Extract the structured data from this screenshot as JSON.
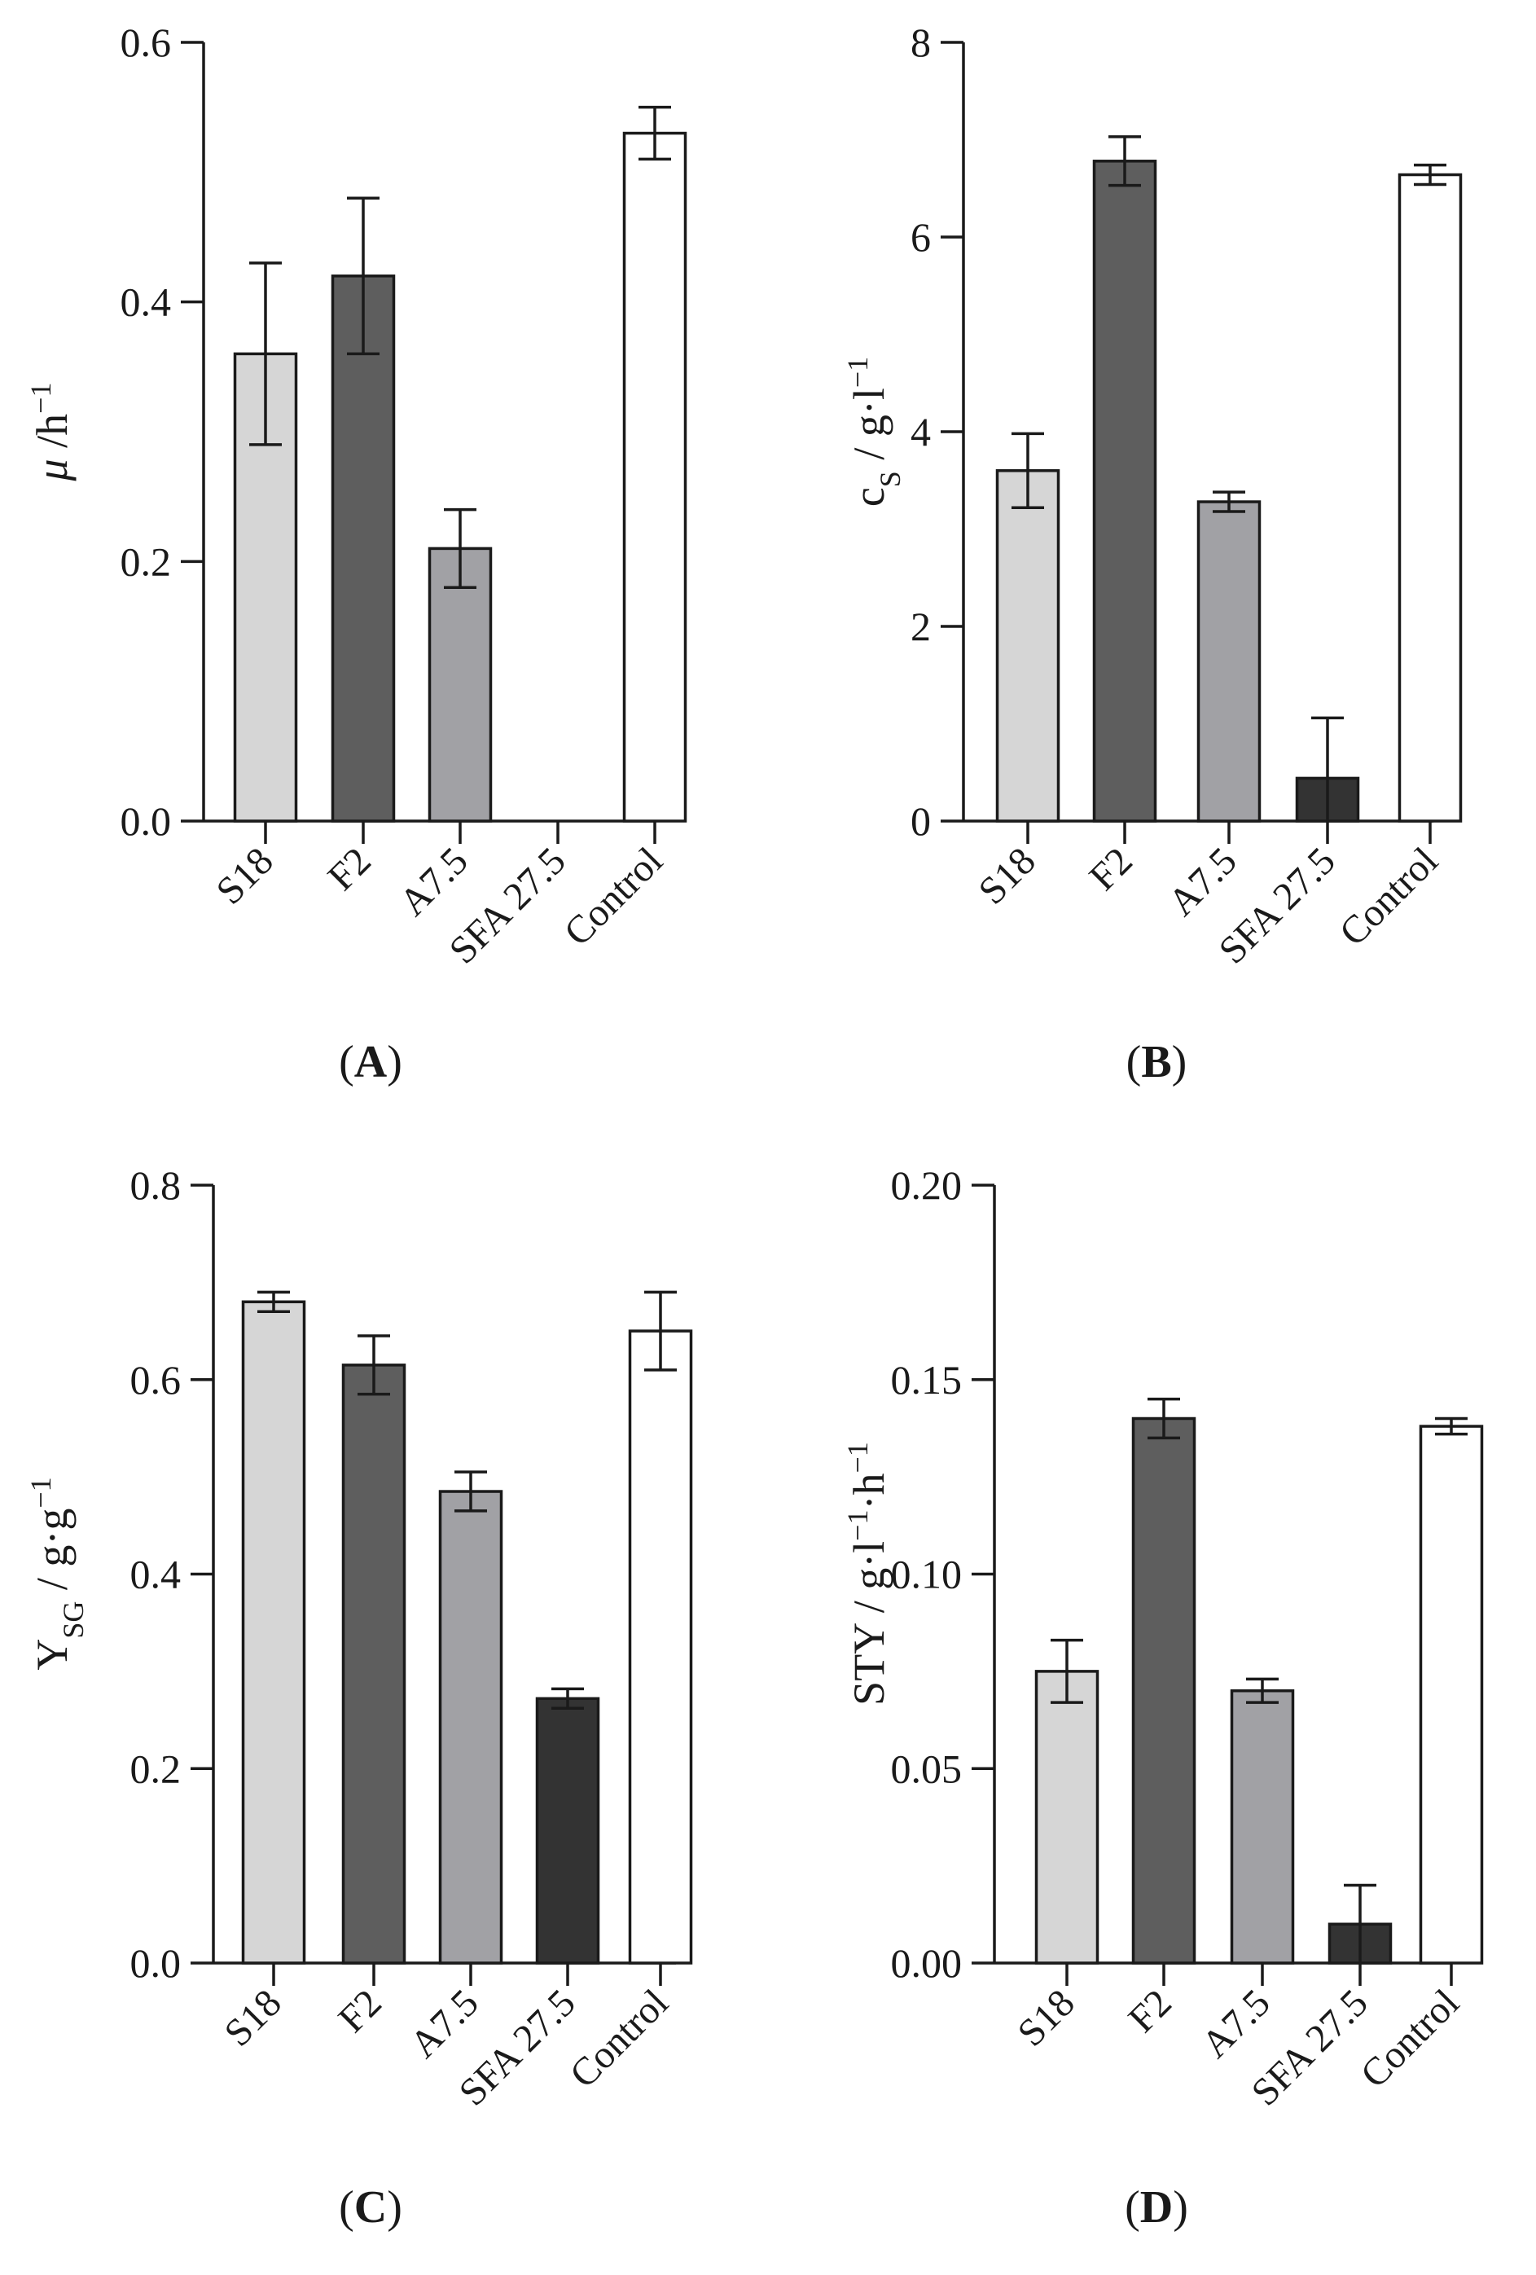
{
  "chart_data": [
    {
      "type": "bar",
      "panel": "A",
      "categories": [
        "S18",
        "F2",
        "A7.5",
        "SFA 27.5",
        "Control"
      ],
      "values": [
        0.36,
        0.42,
        0.21,
        null,
        0.53
      ],
      "errors": [
        0.07,
        0.06,
        0.03,
        null,
        0.02
      ],
      "colors": [
        "#d6d6d6",
        "#5e5e5e",
        "#a1a1a5",
        "#333333",
        "#ffffff"
      ],
      "ylim": [
        0,
        0.6
      ],
      "yticks": [
        "0.0",
        "0.2",
        "0.4",
        "0.6"
      ],
      "ylabel": {
        "main": "μ",
        "rest": " /h",
        "sup": "−1"
      },
      "title": "",
      "xlabel": ""
    },
    {
      "type": "bar",
      "panel": "B",
      "categories": [
        "S18",
        "F2",
        "A7.5",
        "SFA 27.5",
        "Control"
      ],
      "values": [
        3.6,
        6.78,
        3.28,
        0.44,
        6.64
      ],
      "errors": [
        0.38,
        0.25,
        0.1,
        0.62,
        0.1
      ],
      "colors": [
        "#d6d6d6",
        "#5e5e5e",
        "#a1a1a5",
        "#333333",
        "#ffffff"
      ],
      "ylim": [
        0,
        8
      ],
      "yticks": [
        "0",
        "2",
        "4",
        "6",
        "8"
      ],
      "ylabel": {
        "main": "c",
        "sub": "S",
        "rest": " / g·l",
        "sup": "−1"
      },
      "title": "",
      "xlabel": ""
    },
    {
      "type": "bar",
      "panel": "C",
      "categories": [
        "S18",
        "F2",
        "A7.5",
        "SFA 27.5",
        "Control"
      ],
      "values": [
        0.68,
        0.615,
        0.485,
        0.272,
        0.65
      ],
      "errors": [
        0.01,
        0.03,
        0.02,
        0.01,
        0.04
      ],
      "colors": [
        "#d6d6d6",
        "#5e5e5e",
        "#a1a1a5",
        "#333333",
        "#ffffff"
      ],
      "ylim": [
        0,
        0.8
      ],
      "yticks": [
        "0.0",
        "0.2",
        "0.4",
        "0.6",
        "0.8"
      ],
      "ylabel": {
        "main": "Y",
        "sub": "SG",
        "rest": " / g·g",
        "sup": "−1"
      },
      "title": "",
      "xlabel": ""
    },
    {
      "type": "bar",
      "panel": "D",
      "categories": [
        "S18",
        "F2",
        "A7.5",
        "SFA 27.5",
        "Control"
      ],
      "values": [
        0.075,
        0.14,
        0.07,
        0.01,
        0.138
      ],
      "errors": [
        0.008,
        0.005,
        0.003,
        0.01,
        0.002
      ],
      "colors": [
        "#d6d6d6",
        "#5e5e5e",
        "#a1a1a5",
        "#333333",
        "#ffffff"
      ],
      "ylim": [
        0,
        0.2
      ],
      "yticks": [
        "0.00",
        "0.05",
        "0.10",
        "0.15",
        "0.20"
      ],
      "ylabel": {
        "main": "STY / g·l",
        "sup": "−1",
        "rest": "·h",
        "sup2": "−1"
      },
      "title": "",
      "xlabel": ""
    }
  ]
}
